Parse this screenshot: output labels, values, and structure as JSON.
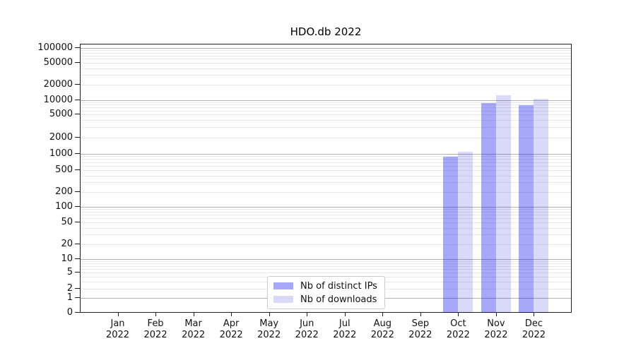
{
  "chart": {
    "title": "HDO.db 2022"
  },
  "chart_data": {
    "type": "bar",
    "title": "HDO.db 2022",
    "categories": [
      "Jan 2022",
      "Feb 2022",
      "Mar 2022",
      "Apr 2022",
      "May 2022",
      "Jun 2022",
      "Jul 2022",
      "Aug 2022",
      "Sep 2022",
      "Oct 2022",
      "Nov 2022",
      "Dec 2022"
    ],
    "series": [
      {
        "name": "Nb of distinct IPs",
        "color": "rgba(0,0,240,0.34)",
        "color_hex": "#a9a9f1",
        "values": [
          0,
          0,
          0,
          0,
          0,
          0,
          0,
          0,
          0,
          880,
          8600,
          7900
        ]
      },
      {
        "name": "Nb of downloads",
        "color": "rgba(0,0,210,0.15)",
        "color_hex": "#d9d9f8",
        "values": [
          0,
          0,
          0,
          0,
          0,
          0,
          0,
          0,
          0,
          1100,
          12500,
          10500
        ]
      }
    ],
    "xlabel": "",
    "ylabel": "",
    "yscale": "symlog",
    "ylim": [
      0,
      120000
    ],
    "y_ticks": [
      0,
      1,
      2,
      5,
      10,
      20,
      50,
      100,
      200,
      500,
      1000,
      2000,
      5000,
      10000,
      20000,
      50000,
      100000
    ],
    "grid": true,
    "legend_position": "lower center"
  }
}
